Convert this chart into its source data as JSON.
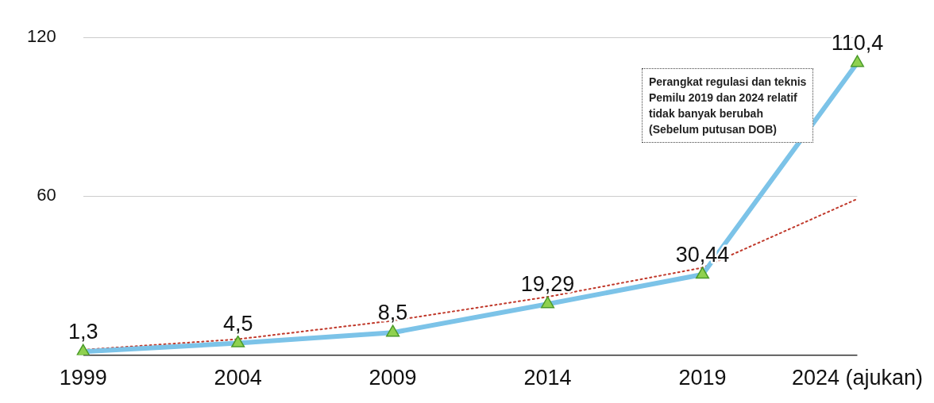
{
  "chart_data": {
    "type": "line",
    "categories": [
      "1999",
      "2004",
      "2009",
      "2014",
      "2019",
      "2024 (ajukan)"
    ],
    "series": [
      {
        "color": "#7cc3e8",
        "values": [
          1.3,
          4.5,
          8.5,
          19.29,
          30.44,
          110.4
        ],
        "value_labels": [
          "1,3",
          "4,5",
          "8,5",
          "19,29",
          "30,44",
          "110,4"
        ],
        "marker": "triangle",
        "line_style": "solid"
      },
      {
        "color": "#c0392b",
        "values": [
          2,
          6,
          13,
          22,
          33,
          59
        ],
        "marker": "none",
        "line_style": "dotted"
      }
    ],
    "ylim": [
      0,
      120
    ],
    "yticks": [
      {
        "value": 0,
        "label": null
      },
      60,
      120
    ],
    "grid": "y",
    "legend": false,
    "annotations": [
      "Perangkat regulasi dan teknis\nPemilu 2019 dan 2024 relatif\ntidak banyak berubah\n(Sebelum putusan DOB)"
    ]
  }
}
